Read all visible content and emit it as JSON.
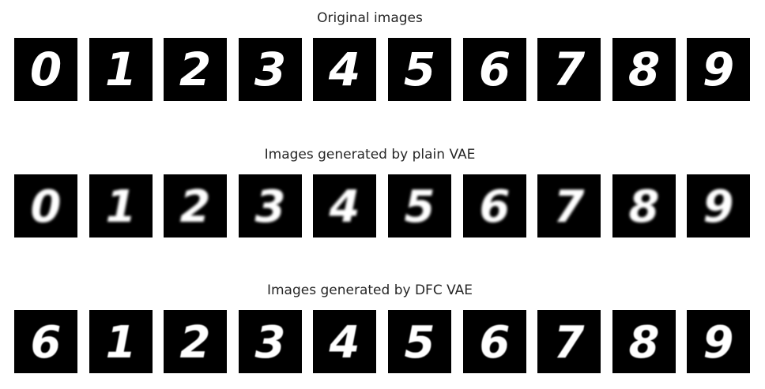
{
  "rows": [
    {
      "title": "Original images",
      "digits": [
        "0",
        "1",
        "2",
        "3",
        "4",
        "5",
        "6",
        "7",
        "8",
        "9"
      ],
      "style": "original"
    },
    {
      "title": "Images generated by plain VAE",
      "digits": [
        "0",
        "1",
        "2",
        "3",
        "4",
        "5",
        "6",
        "7",
        "8",
        "9"
      ],
      "style": "plain"
    },
    {
      "title": "Images generated by DFC VAE",
      "digits": [
        "6",
        "1",
        "2",
        "3",
        "4",
        "5",
        "6",
        "7",
        "8",
        "9"
      ],
      "style": "dfc"
    }
  ],
  "colors": {
    "background": "#ffffff",
    "tile": "#000000",
    "ink": "#ffffff",
    "title_text": "#262626"
  }
}
